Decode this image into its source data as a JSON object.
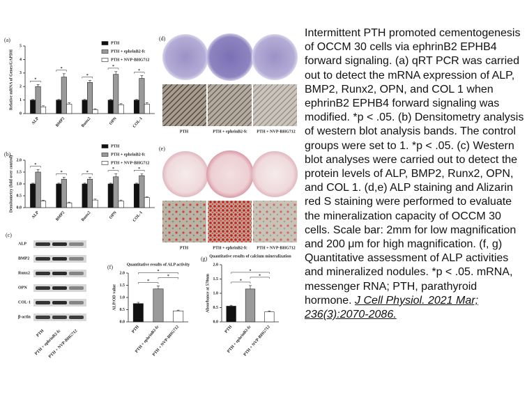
{
  "chart_data": [
    {
      "type": "bar",
      "label": "(a)",
      "ylabel": "Relative mRNA of Genes/GAPDH",
      "categories": [
        "ALP",
        "BMP2",
        "Runx2",
        "OPN",
        "COL-1"
      ],
      "series": [
        {
          "name": "PTH",
          "color": "#111111",
          "values": [
            1,
            1,
            1,
            1,
            1
          ],
          "errors": [
            0.05,
            0.05,
            0.05,
            0.05,
            0.05
          ]
        },
        {
          "name": "PTH + ephrinB2-fc",
          "color": "#9a9a9a",
          "values": [
            2.0,
            2.7,
            2.3,
            2.9,
            2.6
          ],
          "errors": [
            0.15,
            0.25,
            0.15,
            0.2,
            0.2
          ]
        },
        {
          "name": "PTH + NVP-BHG712",
          "color": "#ffffff",
          "values": [
            0.5,
            0.7,
            0.3,
            0.65,
            0.7
          ],
          "errors": [
            0.08,
            0.1,
            0.05,
            0.08,
            0.1
          ]
        }
      ],
      "ylim": [
        0,
        5
      ],
      "yticks": [
        0,
        1,
        2,
        3,
        4,
        5
      ]
    },
    {
      "type": "bar",
      "label": "(b)",
      "ylabel": "Densitometry (fold over control)",
      "categories": [
        "ALP",
        "BMP2",
        "Runx2",
        "OPN",
        "COL-1"
      ],
      "series": [
        {
          "name": "PTH",
          "color": "#111111",
          "values": [
            1,
            1,
            1,
            1,
            1
          ],
          "errors": [
            0.03,
            0.03,
            0.03,
            0.03,
            0.03
          ]
        },
        {
          "name": "PTH + ephrinB2-fc",
          "color": "#9a9a9a",
          "values": [
            1.5,
            1.2,
            1.2,
            1.3,
            1.35
          ],
          "errors": [
            0.1,
            0.08,
            0.08,
            0.12,
            0.08
          ]
        },
        {
          "name": "PTH + NVP-BHG712",
          "color": "#ffffff",
          "values": [
            0.28,
            0.2,
            0.32,
            0.28,
            0.42
          ],
          "errors": [
            0.03,
            0.03,
            0.04,
            0.04,
            0.03
          ]
        }
      ],
      "ylim": [
        0,
        2.0
      ],
      "yticks": [
        {
          "value": 0,
          "label": "0.0"
        },
        0.5,
        {
          "value": 1,
          "label": "1.0"
        },
        1.5,
        {
          "value": 2,
          "label": "2.0"
        }
      ]
    },
    {
      "type": "bar",
      "label": "(f)",
      "title": "Quantitative results of ALP activity",
      "ylabel": "ALP/OD value",
      "categories": [
        "PTH",
        "PTH + ephrinB2-fc",
        "PTH + NVP-BHG712"
      ],
      "values": [
        0.75,
        1.35,
        0.45
      ],
      "errors": [
        0.05,
        0.12,
        0.03
      ],
      "colors": [
        "#111111",
        "#9a9a9a",
        "#ffffff"
      ],
      "ylim": [
        0,
        2.0
      ],
      "yticks": [
        {
          "value": 0,
          "label": "0.0"
        },
        0.5,
        {
          "value": 1,
          "label": "1.0"
        },
        1.5,
        {
          "value": 2,
          "label": "2.0"
        }
      ]
    },
    {
      "type": "bar",
      "label": "(g)",
      "title": "Quantitative results of calcium mineralization",
      "ylabel": "Absorbance at 570nm",
      "categories": [
        "PTH",
        "PTH + ephrinB2-fc",
        "PTH + NVP-BHG712"
      ],
      "values": [
        0.55,
        1.15,
        0.35
      ],
      "errors": [
        0.03,
        0.12,
        0.03
      ],
      "colors": [
        "#111111",
        "#9a9a9a",
        "#ffffff"
      ],
      "ylim": [
        0,
        2.0
      ],
      "yticks": [
        {
          "value": 0,
          "label": "0.0"
        },
        0.5,
        {
          "value": 1,
          "label": "1.0"
        },
        1.5,
        {
          "value": 2,
          "label": "2.0"
        }
      ]
    }
  ],
  "significance_mark": "*",
  "blot": {
    "label": "(c)",
    "proteins": [
      "ALP",
      "BMP2",
      "Runx2",
      "OPN",
      "COL-1",
      "β-actin"
    ],
    "lanes": [
      "PTH",
      "PTH + ephrinB2-fc",
      "PTH + NVP-BHG712"
    ]
  },
  "photos": [
    {
      "label": "(d)",
      "conditions": [
        "PTH",
        "PTH + ephrinB2-fc",
        "PTH + NVP-BHG712"
      ]
    },
    {
      "label": "(e)",
      "conditions": [
        "PTH",
        "PTH + ephrinB2-fc",
        "PTH + NVP-BHG712"
      ]
    }
  ],
  "caption": {
    "text": "Intermittent PTH promoted cementogenesis of OCCM 30 cells via ephrinB2 EPHB4 forward signaling. (a) qRT PCR was carried out to detect the mRNA expression of ALP, BMP2, Runx2, OPN, and COL 1 when ephrinB2 EPHB4 forward signaling was modified. *p < .05. (b) Densitometry analysis of western blot analysis bands. The control groups were set to 1. *p < .05. (c) Western blot analyses were carried out to detect the protein levels of ALP, BMP2, Runx2, OPN, and COL 1. (d,e) ALP staining and Alizarin red S staining were performed to evaluate the mineralization capacity of OCCM 30 cells. Scale bar: 2mm for low magnification and 200 μm for high magnification. (f, g) Quantitative assessment of ALP activities and mineralized nodules. *p < .05. mRNA, messenger RNA; PTH, parathyroid hormone.",
    "citation": "J Cell Physiol. 2021 Mar; 236(3):2070-2086."
  }
}
